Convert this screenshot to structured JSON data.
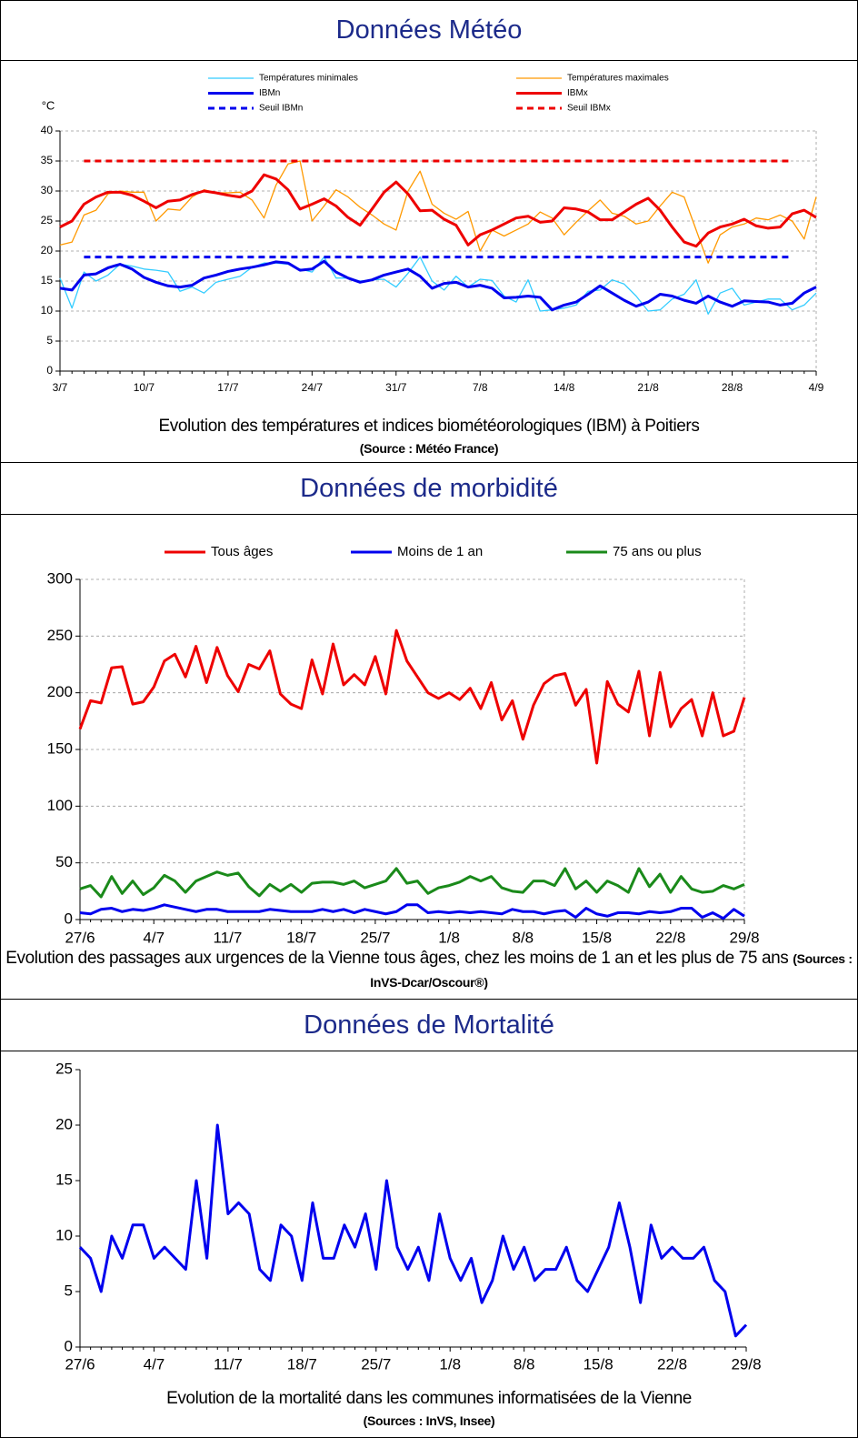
{
  "chart_data": [
    {
      "type": "line",
      "heading": "Données Météo",
      "y_label": "°C",
      "caption": "Evolution des températures et indices biométéorologiques (IBM) à Poitiers",
      "source": "(Source : Météo France)",
      "categories": [
        "3/7",
        null,
        null,
        null,
        null,
        null,
        null,
        "10/7",
        null,
        null,
        null,
        null,
        null,
        null,
        "17/7",
        null,
        null,
        null,
        null,
        null,
        null,
        "24/7",
        null,
        null,
        null,
        null,
        null,
        null,
        "31/7",
        null,
        null,
        null,
        null,
        null,
        null,
        "7/8",
        null,
        null,
        null,
        null,
        null,
        null,
        "14/8",
        null,
        null,
        null,
        null,
        null,
        null,
        "21/8",
        null,
        null,
        null,
        null,
        null,
        null,
        "28/8",
        null,
        null,
        null,
        null,
        null,
        null,
        "4/9"
      ],
      "ylim": [
        0,
        40
      ],
      "yticks": [
        0,
        5,
        10,
        15,
        20,
        25,
        30,
        35,
        40
      ],
      "grid": true,
      "legend": "top",
      "series": [
        {
          "name": "Températures minimales",
          "color": "#33ccff",
          "linewidth": 1.3,
          "linestyle": "solid",
          "values": [
            15.5,
            10.5,
            16.5,
            15,
            16,
            17.8,
            17.5,
            17,
            16.8,
            16.5,
            13.3,
            14,
            13,
            14.8,
            15.3,
            15.8,
            17.3,
            18,
            18,
            17.8,
            17,
            16.5,
            19,
            15.5,
            15.5,
            15,
            15.2,
            15.3,
            14,
            16.3,
            19,
            15,
            13.5,
            15.8,
            14,
            15.3,
            15.1,
            12.5,
            11.5,
            15.2,
            10,
            10.2,
            10.5,
            11,
            13.3,
            13.5,
            15.2,
            14.5,
            12.5,
            10,
            10.2,
            12,
            12.8,
            15.2,
            9.5,
            13,
            13.8,
            11,
            11.5,
            12,
            12,
            10.2,
            11,
            13
          ]
        },
        {
          "name": "Températures maximales",
          "color": "#ff9900",
          "linewidth": 1.3,
          "linestyle": "solid",
          "values": [
            21,
            21.5,
            26,
            26.8,
            29.5,
            30,
            29.8,
            29.8,
            25,
            27,
            26.8,
            29,
            30.2,
            29.7,
            29.7,
            29.8,
            28.5,
            25.5,
            31,
            34.5,
            35,
            25,
            27.5,
            30.2,
            29,
            27.3,
            26,
            24.5,
            23.5,
            30,
            33.3,
            27.8,
            26.3,
            25.3,
            26.6,
            20,
            23.5,
            22.5,
            23.5,
            24.5,
            26.5,
            25.5,
            22.7,
            24.8,
            26.7,
            28.5,
            26.3,
            25.8,
            24.5,
            25,
            27.5,
            29.8,
            29,
            23.5,
            18,
            22.7,
            24,
            24.5,
            25.5,
            25.2,
            26,
            25,
            22,
            29
          ]
        },
        {
          "name": "IBMn",
          "color": "#0000ee",
          "linewidth": 3,
          "linestyle": "solid",
          "values": [
            13.8,
            13.5,
            16,
            16.2,
            17.2,
            17.8,
            17,
            15.6,
            14.8,
            14.2,
            14,
            14.3,
            15.5,
            16,
            16.6,
            17,
            17.3,
            17.7,
            18.2,
            18,
            16.8,
            17,
            18.3,
            16.5,
            15.5,
            14.8,
            15.2,
            16,
            16.5,
            17,
            15.8,
            13.8,
            14.6,
            14.8,
            14,
            14.3,
            13.8,
            12.2,
            12.3,
            12.5,
            12.3,
            10.2,
            11,
            11.5,
            12.8,
            14.2,
            13,
            11.8,
            10.8,
            11.5,
            12.8,
            12.5,
            11.8,
            11.3,
            12.5,
            11.5,
            10.8,
            11.7,
            11.6,
            11.5,
            11,
            11.3,
            13,
            14
          ]
        },
        {
          "name": "IBMx",
          "color": "#ee0000",
          "linewidth": 3,
          "linestyle": "solid",
          "values": [
            24,
            25,
            27.8,
            29,
            29.8,
            29.8,
            29.3,
            28.3,
            27.2,
            28.3,
            28.5,
            29.4,
            30,
            29.7,
            29.3,
            29,
            30,
            32.7,
            32,
            30.2,
            27,
            27.8,
            28.7,
            27.5,
            25.6,
            24.3,
            27,
            29.8,
            31.5,
            29.5,
            26.7,
            26.8,
            25.3,
            24.3,
            21,
            22.7,
            23.5,
            24.5,
            25.5,
            25.8,
            24.8,
            25,
            27.2,
            27,
            26.5,
            25.2,
            25.2,
            26.5,
            27.8,
            28.8,
            26.8,
            24,
            21.5,
            20.8,
            23,
            24,
            24.5,
            25.3,
            24.2,
            23.8,
            24,
            26.2,
            26.8,
            25.6
          ]
        },
        {
          "name": "Seuil IBMn",
          "color": "#0000ee",
          "linewidth": 3,
          "linestyle": "dashed",
          "values": [
            null,
            null,
            19,
            19,
            19,
            19,
            19,
            19,
            19,
            19,
            19,
            19,
            19,
            19,
            19,
            19,
            19,
            19,
            19,
            19,
            19,
            19,
            19,
            19,
            19,
            19,
            19,
            19,
            19,
            19,
            19,
            19,
            19,
            19,
            19,
            19,
            19,
            19,
            19,
            19,
            19,
            19,
            19,
            19,
            19,
            19,
            19,
            19,
            19,
            19,
            19,
            19,
            19,
            19,
            19,
            19,
            19,
            19,
            19,
            19,
            19,
            19,
            null,
            null
          ]
        },
        {
          "name": "Seuil IBMx",
          "color": "#ee0000",
          "linewidth": 3,
          "linestyle": "dashed",
          "values": [
            null,
            null,
            35,
            35,
            35,
            35,
            35,
            35,
            35,
            35,
            35,
            35,
            35,
            35,
            35,
            35,
            35,
            35,
            35,
            35,
            35,
            35,
            35,
            35,
            35,
            35,
            35,
            35,
            35,
            35,
            35,
            35,
            35,
            35,
            35,
            35,
            35,
            35,
            35,
            35,
            35,
            35,
            35,
            35,
            35,
            35,
            35,
            35,
            35,
            35,
            35,
            35,
            35,
            35,
            35,
            35,
            35,
            35,
            35,
            35,
            35,
            35,
            null,
            null
          ]
        }
      ]
    },
    {
      "type": "line",
      "heading": "Données de morbidité",
      "caption": "Evolution des passages aux urgences de la Vienne tous âges, chez les moins de 1 an et les plus de 75 ans",
      "source": "(Sources : InVS-Dcar/Oscour®)",
      "categories": [
        "27/6",
        null,
        null,
        null,
        null,
        null,
        null,
        "4/7",
        null,
        null,
        null,
        null,
        null,
        null,
        "11/7",
        null,
        null,
        null,
        null,
        null,
        null,
        "18/7",
        null,
        null,
        null,
        null,
        null,
        null,
        "25/7",
        null,
        null,
        null,
        null,
        null,
        null,
        "1/8",
        null,
        null,
        null,
        null,
        null,
        null,
        "8/8",
        null,
        null,
        null,
        null,
        null,
        null,
        "15/8",
        null,
        null,
        null,
        null,
        null,
        null,
        "22/8",
        null,
        null,
        null,
        null,
        null,
        null,
        "29/8"
      ],
      "ylim": [
        0,
        300
      ],
      "yticks": [
        0,
        50,
        100,
        150,
        200,
        250,
        300
      ],
      "grid": true,
      "legend": "top",
      "series": [
        {
          "name": "Tous âges",
          "color": "#ee0000",
          "linewidth": 3,
          "linestyle": "solid",
          "values": [
            168,
            193,
            191,
            222,
            223,
            190,
            192,
            205,
            228,
            234,
            214,
            241,
            209,
            240,
            215,
            201,
            225,
            221,
            237,
            199,
            190,
            186,
            229,
            199,
            243,
            207,
            216,
            207,
            232,
            199,
            255,
            228,
            214,
            200,
            195,
            200,
            194,
            204,
            186,
            209,
            176,
            193,
            159,
            189,
            208,
            215,
            217,
            189,
            203,
            138,
            210,
            190,
            183,
            219,
            162,
            218,
            170,
            186,
            194,
            162,
            200,
            162,
            166,
            196
          ]
        },
        {
          "name": "Moins de 1 an",
          "color": "#0000ee",
          "linewidth": 3,
          "linestyle": "solid",
          "values": [
            6,
            5,
            9,
            10,
            7,
            9,
            8,
            10,
            13,
            11,
            9,
            7,
            9,
            9,
            7,
            7,
            7,
            7,
            9,
            8,
            7,
            7,
            7,
            9,
            7,
            9,
            6,
            9,
            7,
            5,
            7,
            13,
            13,
            6,
            7,
            6,
            7,
            6,
            7,
            6,
            5,
            9,
            7,
            7,
            5,
            7,
            8,
            2,
            10,
            5,
            3,
            6,
            6,
            5,
            7,
            6,
            7,
            10,
            10,
            2,
            6,
            1,
            9,
            3
          ]
        },
        {
          "name": "75 ans ou plus",
          "color": "#1a8a1a",
          "linewidth": 3,
          "linestyle": "solid",
          "values": [
            27,
            30,
            20,
            38,
            23,
            34,
            22,
            28,
            39,
            34,
            24,
            34,
            38,
            42,
            39,
            41,
            29,
            21,
            31,
            25,
            31,
            24,
            32,
            33,
            33,
            31,
            34,
            28,
            31,
            34,
            45,
            32,
            34,
            23,
            28,
            30,
            33,
            38,
            34,
            38,
            28,
            25,
            24,
            34,
            34,
            30,
            45,
            27,
            34,
            24,
            34,
            30,
            24,
            45,
            29,
            40,
            24,
            38,
            27,
            24,
            25,
            30,
            27,
            31
          ]
        }
      ]
    },
    {
      "type": "line",
      "heading": "Données de Mortalité",
      "caption": "Evolution de la mortalité dans les communes informatisées de  la Vienne",
      "source": "(Sources : InVS, Insee)",
      "categories": [
        "27/6",
        null,
        null,
        null,
        null,
        null,
        null,
        "4/7",
        null,
        null,
        null,
        null,
        null,
        null,
        "11/7",
        null,
        null,
        null,
        null,
        null,
        null,
        "18/7",
        null,
        null,
        null,
        null,
        null,
        null,
        "25/7",
        null,
        null,
        null,
        null,
        null,
        null,
        "1/8",
        null,
        null,
        null,
        null,
        null,
        null,
        "8/8",
        null,
        null,
        null,
        null,
        null,
        null,
        "15/8",
        null,
        null,
        null,
        null,
        null,
        null,
        "22/8",
        null,
        null,
        null,
        null,
        null,
        null,
        "29/8"
      ],
      "ylim": [
        0,
        25
      ],
      "yticks": [
        0,
        5,
        10,
        15,
        20,
        25
      ],
      "grid": false,
      "series": [
        {
          "color": "#0000ee",
          "linewidth": 3,
          "linestyle": "solid",
          "values": [
            9,
            8,
            5,
            10,
            8,
            11,
            11,
            8,
            9,
            8,
            7,
            15,
            8,
            20,
            12,
            13,
            12,
            7,
            6,
            11,
            10,
            6,
            13,
            8,
            8,
            11,
            9,
            12,
            7,
            15,
            9,
            7,
            9,
            6,
            12,
            8,
            6,
            8,
            4,
            6,
            10,
            7,
            9,
            6,
            7,
            7,
            9,
            6,
            5,
            7,
            9,
            13,
            9,
            4,
            11,
            8,
            9,
            8,
            8,
            9,
            6,
            5,
            1,
            2
          ]
        }
      ]
    }
  ]
}
